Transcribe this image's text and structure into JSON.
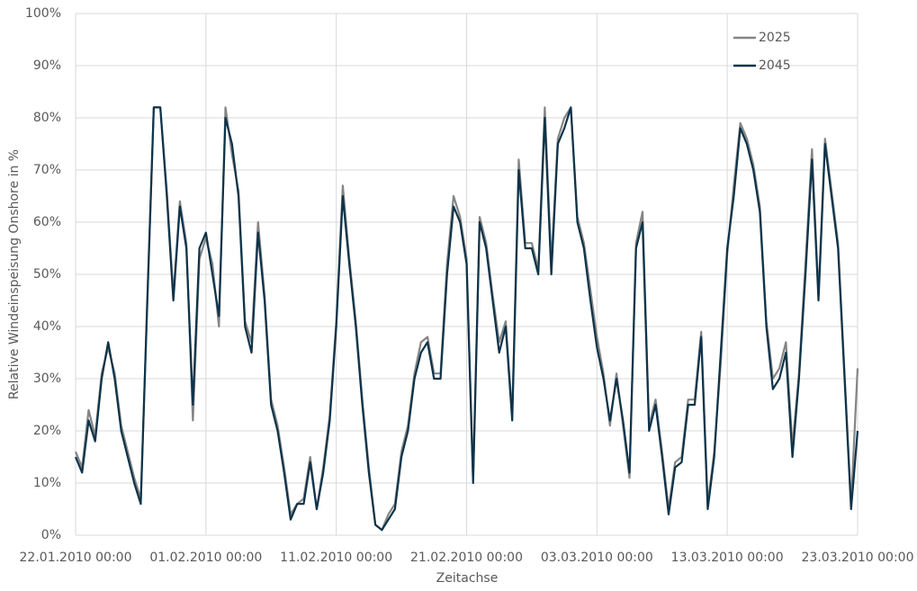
{
  "chart_data": {
    "type": "line",
    "ylabel": "Relative Windeinspeisung Onshore in %",
    "xlabel": "Zeitachse",
    "x": [
      "22.01.2010 00:00",
      "22.01.2010 12:00",
      "23.01.2010 00:00",
      "23.01.2010 12:00",
      "24.01.2010 00:00",
      "24.01.2010 12:00",
      "25.01.2010 00:00",
      "25.01.2010 12:00",
      "26.01.2010 00:00",
      "26.01.2010 12:00",
      "27.01.2010 00:00",
      "27.01.2010 12:00",
      "28.01.2010 00:00",
      "28.01.2010 12:00",
      "29.01.2010 00:00",
      "29.01.2010 12:00",
      "30.01.2010 00:00",
      "30.01.2010 12:00",
      "31.01.2010 00:00",
      "31.01.2010 12:00",
      "01.02.2010 00:00",
      "01.02.2010 12:00",
      "02.02.2010 00:00",
      "02.02.2010 12:00",
      "03.02.2010 00:00",
      "03.02.2010 12:00",
      "04.02.2010 00:00",
      "04.02.2010 12:00",
      "05.02.2010 00:00",
      "05.02.2010 12:00",
      "06.02.2010 00:00",
      "06.02.2010 12:00",
      "07.02.2010 00:00",
      "07.02.2010 12:00",
      "08.02.2010 00:00",
      "08.02.2010 12:00",
      "09.02.2010 00:00",
      "09.02.2010 12:00",
      "10.02.2010 00:00",
      "10.02.2010 12:00",
      "11.02.2010 00:00",
      "11.02.2010 12:00",
      "12.02.2010 00:00",
      "12.02.2010 12:00",
      "13.02.2010 00:00",
      "13.02.2010 12:00",
      "14.02.2010 00:00",
      "14.02.2010 12:00",
      "15.02.2010 00:00",
      "15.02.2010 12:00",
      "16.02.2010 00:00",
      "16.02.2010 12:00",
      "17.02.2010 00:00",
      "17.02.2010 12:00",
      "18.02.2010 00:00",
      "18.02.2010 12:00",
      "19.02.2010 00:00",
      "19.02.2010 12:00",
      "20.02.2010 00:00",
      "20.02.2010 12:00",
      "21.02.2010 00:00",
      "21.02.2010 12:00",
      "22.02.2010 00:00",
      "22.02.2010 12:00",
      "23.02.2010 00:00",
      "23.02.2010 12:00",
      "24.02.2010 00:00",
      "24.02.2010 12:00",
      "25.02.2010 00:00",
      "25.02.2010 12:00",
      "26.02.2010 00:00",
      "26.02.2010 12:00",
      "27.02.2010 00:00",
      "27.02.2010 12:00",
      "28.02.2010 00:00",
      "28.02.2010 12:00",
      "01.03.2010 00:00",
      "01.03.2010 12:00",
      "02.03.2010 00:00",
      "02.03.2010 12:00",
      "03.03.2010 00:00",
      "03.03.2010 12:00",
      "04.03.2010 00:00",
      "04.03.2010 12:00",
      "05.03.2010 00:00",
      "05.03.2010 12:00",
      "06.03.2010 00:00",
      "06.03.2010 12:00",
      "07.03.2010 00:00",
      "07.03.2010 12:00",
      "08.03.2010 00:00",
      "08.03.2010 12:00",
      "09.03.2010 00:00",
      "09.03.2010 12:00",
      "10.03.2010 00:00",
      "10.03.2010 12:00",
      "11.03.2010 00:00",
      "11.03.2010 12:00",
      "12.03.2010 00:00",
      "12.03.2010 12:00",
      "13.03.2010 00:00",
      "13.03.2010 12:00",
      "14.03.2010 00:00",
      "14.03.2010 12:00",
      "15.03.2010 00:00",
      "15.03.2010 12:00",
      "16.03.2010 00:00",
      "16.03.2010 12:00",
      "17.03.2010 00:00",
      "17.03.2010 12:00",
      "18.03.2010 00:00",
      "18.03.2010 12:00",
      "19.03.2010 00:00",
      "19.03.2010 12:00",
      "20.03.2010 00:00",
      "20.03.2010 12:00",
      "21.03.2010 00:00",
      "21.03.2010 12:00",
      "22.03.2010 00:00",
      "22.03.2010 12:00",
      "23.03.2010 00:00"
    ],
    "series": [
      {
        "name": "2025",
        "color": "#858585",
        "values": [
          16,
          13,
          24,
          19,
          31,
          36,
          31,
          21,
          16,
          11,
          7,
          44,
          82,
          82,
          66,
          46,
          64,
          56,
          22,
          53,
          57,
          52,
          40,
          82,
          73,
          66,
          41,
          37,
          60,
          46,
          26,
          21,
          13,
          4,
          6,
          7,
          15,
          5,
          13,
          23,
          41,
          67,
          53,
          41,
          26,
          13,
          2,
          1,
          4,
          6,
          16,
          21,
          31,
          37,
          38,
          31,
          31,
          52,
          65,
          61,
          53,
          11,
          61,
          56,
          46,
          37,
          41,
          23,
          72,
          56,
          56,
          51,
          82,
          52,
          76,
          80,
          82,
          61,
          56,
          47,
          38,
          31,
          21,
          31,
          21,
          11,
          56,
          62,
          21,
          26,
          16,
          5,
          14,
          15,
          26,
          26,
          39,
          6,
          16,
          33,
          54,
          67,
          79,
          76,
          71,
          63,
          41,
          30,
          32,
          37,
          17,
          31,
          52,
          74,
          46,
          76,
          66,
          56,
          31,
          6,
          32
        ]
      },
      {
        "name": "2045",
        "color": "#0d3349",
        "values": [
          15,
          12,
          22,
          18,
          30,
          37,
          30,
          20,
          15,
          10,
          6,
          45,
          82,
          82,
          65,
          45,
          63,
          55,
          25,
          55,
          58,
          50,
          42,
          80,
          75,
          65,
          40,
          35,
          58,
          45,
          25,
          20,
          12,
          3,
          6,
          6,
          14,
          5,
          12,
          22,
          40,
          65,
          52,
          40,
          25,
          12,
          2,
          1,
          3,
          5,
          15,
          20,
          30,
          35,
          37,
          30,
          30,
          50,
          63,
          60,
          52,
          10,
          60,
          55,
          45,
          35,
          40,
          22,
          70,
          55,
          55,
          50,
          80,
          50,
          75,
          78,
          82,
          60,
          55,
          45,
          36,
          30,
          22,
          30,
          22,
          12,
          55,
          60,
          20,
          25,
          15,
          4,
          13,
          14,
          25,
          25,
          38,
          5,
          15,
          35,
          55,
          65,
          78,
          75,
          70,
          62,
          40,
          28,
          30,
          35,
          15,
          30,
          50,
          72,
          45,
          75,
          65,
          55,
          30,
          5,
          20
        ]
      }
    ],
    "xlim": [
      "22.01.2010 00:00",
      "23.03.2010 00:00"
    ],
    "xticks": [
      "22.01.2010 00:00",
      "01.02.2010 00:00",
      "11.02.2010 00:00",
      "21.02.2010 00:00",
      "03.03.2010 00:00",
      "13.03.2010 00:00",
      "23.03.2010 00:00"
    ],
    "ylim": [
      0,
      100
    ],
    "yticks": [
      {
        "value": 0,
        "label": "0%"
      },
      {
        "value": 10,
        "label": "10%"
      },
      {
        "value": 20,
        "label": "20%"
      },
      {
        "value": 30,
        "label": "30%"
      },
      {
        "value": 40,
        "label": "40%"
      },
      {
        "value": 50,
        "label": "50%"
      },
      {
        "value": 60,
        "label": "60%"
      },
      {
        "value": 70,
        "label": "70%"
      },
      {
        "value": 80,
        "label": "80%"
      },
      {
        "value": 90,
        "label": "90%"
      },
      {
        "value": 100,
        "label": "100%"
      }
    ],
    "grid": true,
    "legend": "top-right"
  }
}
